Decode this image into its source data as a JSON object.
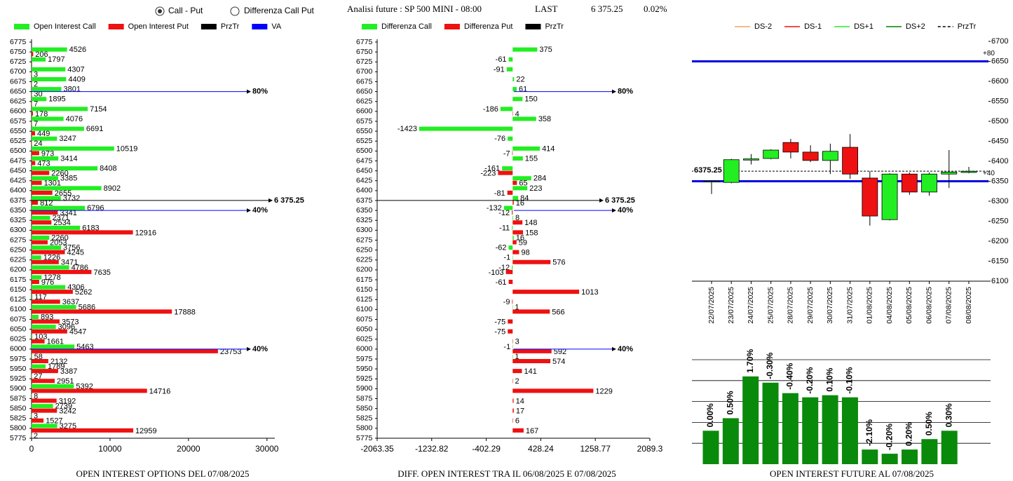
{
  "top_bar": {
    "options": [
      "Call - Put",
      "Differenza Call Put"
    ],
    "selected": 0,
    "heading": "Analisi future : SP 500 MINI - 08:00",
    "last_label": "LAST",
    "last_value": "6 375.25",
    "change": "0.02%"
  },
  "chart_data": [
    {
      "type": "hbar",
      "title": "OPEN INTEREST OPTIONS DEL 07/08/2025",
      "categories": [
        "6775",
        "6750",
        "6725",
        "6700",
        "6675",
        "6650",
        "6625",
        "6600",
        "6575",
        "6550",
        "6525",
        "6500",
        "6475",
        "6450",
        "6425",
        "6400",
        "6375",
        "6350",
        "6325",
        "6300",
        "6275",
        "6250",
        "6225",
        "6200",
        "6175",
        "6150",
        "6125",
        "6100",
        "6075",
        "6050",
        "6025",
        "6000",
        "5975",
        "5950",
        "5925",
        "5900",
        "5875",
        "5850",
        "5825",
        "5800",
        "5775"
      ],
      "series": [
        {
          "name": "Open Interest Call",
          "color": "#22ee22",
          "values": [
            null,
            4526,
            1797,
            4307,
            4409,
            3801,
            1895,
            7154,
            4076,
            6691,
            3247,
            10519,
            3414,
            8408,
            3385,
            8902,
            3732,
            6796,
            2371,
            6183,
            2260,
            3756,
            1226,
            4786,
            1278,
            4306,
            117,
            5686,
            893,
            3096,
            103,
            5463,
            58,
            1789,
            27,
            5392,
            8,
            2739,
            3,
            3275,
            2
          ]
        },
        {
          "name": "Open Interest Put",
          "color": "#ee1111",
          "values": [
            null,
            206,
            null,
            3,
            2,
            30,
            7,
            178,
            7,
            449,
            24,
            973,
            473,
            2260,
            1301,
            2655,
            812,
            3341,
            2534,
            12916,
            2053,
            4245,
            3471,
            7635,
            976,
            5262,
            3637,
            17888,
            3573,
            4547,
            1661,
            23753,
            2132,
            3387,
            2951,
            14716,
            3192,
            3242,
            1527,
            12959,
            null
          ]
        }
      ],
      "legend_extra": [
        {
          "name": "PrzTr",
          "color": "#000000"
        },
        {
          "name": "VA",
          "color": "#0000ff"
        }
      ],
      "xlim": [
        0,
        31000
      ],
      "xticks": [
        0,
        10000,
        20000,
        30000
      ],
      "ylim": [
        5775,
        6775
      ],
      "lines": [
        {
          "value": 6650,
          "label": "80%",
          "color": "#0000ff"
        },
        {
          "value": 6375.25,
          "label": "6 375.25",
          "color": "#000000"
        },
        {
          "value": 6350,
          "label": "40%",
          "color": "#0000ff"
        },
        {
          "value": 6000,
          "label": "40%",
          "color": "#0000ff"
        }
      ]
    },
    {
      "type": "hbar",
      "title": "DIFF. OPEN INTEREST TRA IL 06/08/2025 E 07/08/2025",
      "categories": [
        "6775",
        "6750",
        "6725",
        "6700",
        "6675",
        "6650",
        "6625",
        "6600",
        "6575",
        "6550",
        "6525",
        "6500",
        "6475",
        "6450",
        "6425",
        "6400",
        "6375",
        "6350",
        "6325",
        "6300",
        "6275",
        "6250",
        "6225",
        "6200",
        "6175",
        "6150",
        "6125",
        "6100",
        "6075",
        "6050",
        "6025",
        "6000",
        "5975",
        "5950",
        "5925",
        "5900",
        "5875",
        "5850",
        "5825",
        "5800",
        "5775"
      ],
      "series": [
        {
          "name": "Differenza Call",
          "color": "#22ee22",
          "values": [
            null,
            375,
            -61,
            -91,
            22,
            61,
            150,
            -186,
            358,
            -1423,
            -76,
            414,
            155,
            -161,
            284,
            223,
            84,
            -132,
            8,
            -11,
            16,
            -62,
            -1,
            -12,
            null,
            null,
            null,
            1,
            null,
            null,
            null,
            -1,
            1,
            null,
            null,
            null,
            null,
            null,
            null,
            null,
            null
          ]
        },
        {
          "name": "Differenza Put",
          "color": "#ee1111",
          "values": [
            null,
            null,
            null,
            null,
            null,
            null,
            null,
            4,
            null,
            null,
            null,
            -7,
            null,
            -223,
            65,
            -81,
            16,
            -12,
            148,
            158,
            59,
            98,
            576,
            -103,
            -61,
            1013,
            -9,
            566,
            -75,
            -75,
            3,
            592,
            574,
            141,
            2,
            1229,
            14,
            17,
            6,
            167,
            null
          ]
        }
      ],
      "legend_extra": [
        {
          "name": "PrzTr",
          "color": "#000000"
        }
      ],
      "xlim": [
        -2063.35,
        2089.3
      ],
      "xticks": [
        -2063.35,
        -1232.82,
        -402.29,
        428.24,
        1258.77,
        2089.3
      ],
      "ylim": [
        5775,
        6775
      ],
      "lines": [
        {
          "value": 6650,
          "label": "80%",
          "color": "#0000ff"
        },
        {
          "value": 6375.25,
          "label": "6 375.25",
          "color": "#000000"
        },
        {
          "value": 6350,
          "label": "40%",
          "color": "#0000ff"
        },
        {
          "value": 6000,
          "label": "40%",
          "color": "#0000ff"
        }
      ]
    },
    {
      "type": "candlestick",
      "dates": [
        "22/07/2025",
        "23/07/2025",
        "24/07/2025",
        "25/07/2025",
        "28/07/2025",
        "29/07/2025",
        "30/07/2025",
        "31/07/2025",
        "01/08/2025",
        "04/08/2025",
        "05/08/2025",
        "06/08/2025",
        "07/08/2025",
        "08/08/2025"
      ],
      "open": [
        6348,
        6347,
        6403,
        6407,
        6447,
        6423,
        6402,
        6435,
        6358,
        6254,
        6368,
        6323,
        6368,
        6372
      ],
      "high": [
        6352,
        6406,
        6418,
        6430,
        6456,
        6440,
        6444,
        6468,
        6375,
        6370,
        6372,
        6372,
        6428,
        6386
      ],
      "low": [
        6318,
        6345,
        6392,
        6405,
        6407,
        6398,
        6368,
        6356,
        6239,
        6252,
        6316,
        6314,
        6333,
        6370
      ],
      "close": [
        6350,
        6404,
        6406,
        6428,
        6423,
        6402,
        6425,
        6368,
        6263,
        6368,
        6323,
        6368,
        6373,
        6375
      ],
      "up_color": "#22ee22",
      "down_color": "#ee1111",
      "ylim": [
        6100,
        6700
      ],
      "yticks": [
        6100,
        6150,
        6200,
        6250,
        6300,
        6350,
        6400,
        6450,
        6500,
        6550,
        6600,
        6650,
        6700
      ],
      "legend": [
        {
          "name": "DS-2",
          "color": "#f4a460",
          "dashed": false
        },
        {
          "name": "DS-1",
          "color": "#ee1111",
          "dashed": false
        },
        {
          "name": "DS+1",
          "color": "#22ee22",
          "dashed": false
        },
        {
          "name": "DS+2",
          "color": "#008000",
          "dashed": false
        },
        {
          "name": "PrzTr",
          "color": "#000000",
          "dashed": true
        }
      ],
      "levels": [
        {
          "value": 6650,
          "label": "+80",
          "color": "#0000dd"
        },
        {
          "value": 6350,
          "label": "+40",
          "color": "#0000dd"
        }
      ],
      "przTr": 6375.25
    },
    {
      "type": "bar",
      "title": "OPEN INTEREST FUTURE AL 07/08/2025",
      "values": [
        1.6,
        2.2,
        4.2,
        3.9,
        3.4,
        3.2,
        3.3,
        3.2,
        0.7,
        0.5,
        0.7,
        1.2,
        1.6
      ],
      "bar_labels": [
        "0.00%",
        "0.50%",
        "1.70%",
        "-0.30%",
        "-0.40%",
        "-0.20%",
        "0.10%",
        "-0.10%",
        "-2.10%",
        "-0.20%",
        "0.20%",
        "0.50%",
        "0.30%"
      ],
      "color": "#0a8a0a",
      "ylim": [
        0,
        5
      ],
      "grid_lines": [
        1,
        2,
        3,
        4,
        5
      ]
    }
  ]
}
